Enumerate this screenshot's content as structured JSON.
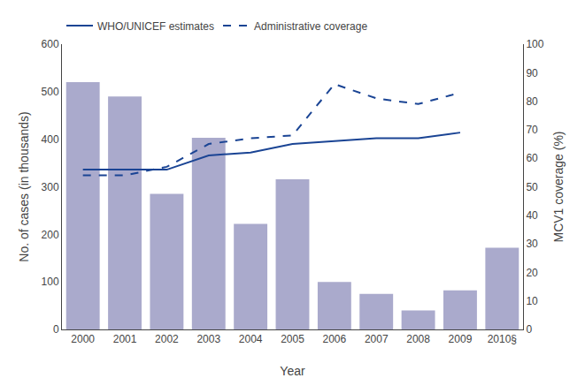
{
  "chart_data": {
    "type": "bar",
    "categories": [
      "2000",
      "2001",
      "2002",
      "2003",
      "2004",
      "2005",
      "2006",
      "2007",
      "2008",
      "2009",
      "2010§"
    ],
    "x_label": "Year",
    "y_label": "No. of cases (in thousands)",
    "y2_label": "MCV1 coverage (%)",
    "series": [
      {
        "type": "bar",
        "color": "#aaaacc",
        "values": [
          520,
          490,
          285,
          403,
          222,
          316,
          100,
          75,
          40,
          82,
          172
        ]
      },
      {
        "name": "WHO/UNICEF estimates",
        "type": "line",
        "axis": "y2",
        "color": "#1a4494",
        "line_style": "solid",
        "values": [
          56,
          56,
          56,
          61,
          62,
          65,
          66,
          67,
          67,
          69,
          null
        ]
      },
      {
        "name": "Administrative coverage",
        "type": "line",
        "axis": "y2",
        "color": "#1a4494",
        "line_style": "dashed",
        "values": [
          54,
          54,
          57,
          65,
          67,
          68,
          86,
          81,
          79,
          83,
          null
        ]
      }
    ],
    "ylim": [
      0,
      600
    ],
    "yticks": [
      0,
      100,
      200,
      300,
      400,
      500,
      600
    ],
    "y2lim": [
      0,
      100
    ],
    "y2ticks": [
      0,
      10,
      20,
      30,
      40,
      50,
      60,
      70,
      80,
      90,
      100
    ],
    "grid": false,
    "legend": "upper left"
  }
}
